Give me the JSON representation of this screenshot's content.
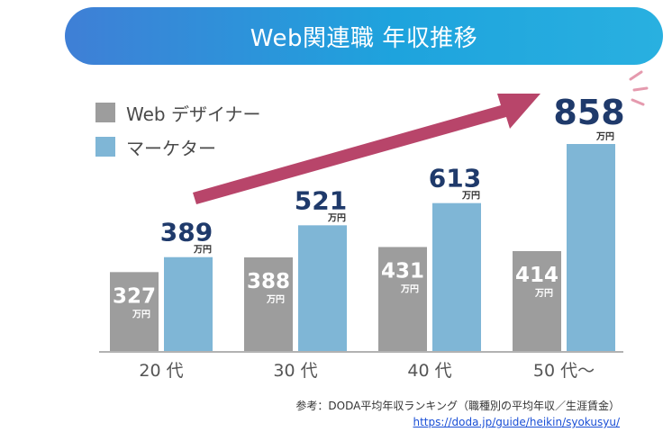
{
  "header": {
    "title": "Web関連職 年収推移"
  },
  "colors": {
    "designer": "#9d9d9d",
    "marketer": "#7fb6d6",
    "label_dark": "#1f3a6b",
    "arrow": "#b8456a",
    "axis": "#999999"
  },
  "chart_data": {
    "type": "bar",
    "categories": [
      "20 代",
      "30 代",
      "40 代",
      "50 代～"
    ],
    "series": [
      {
        "name": "Web デザイナー",
        "values": [
          327,
          388,
          431,
          414
        ]
      },
      {
        "name": "マーケター",
        "values": [
          389,
          521,
          613,
          858
        ]
      }
    ],
    "unit": "万円",
    "ylim": [
      0,
      900
    ],
    "grid": false,
    "legend": "top-left",
    "annotation": "arrow trending upward"
  },
  "source": {
    "text": "参考：DODA平均年収ランキング（職種別の平均年収／生涯賃金）",
    "link": "https://doda.jp/guide/heikin/syokusyu/"
  }
}
